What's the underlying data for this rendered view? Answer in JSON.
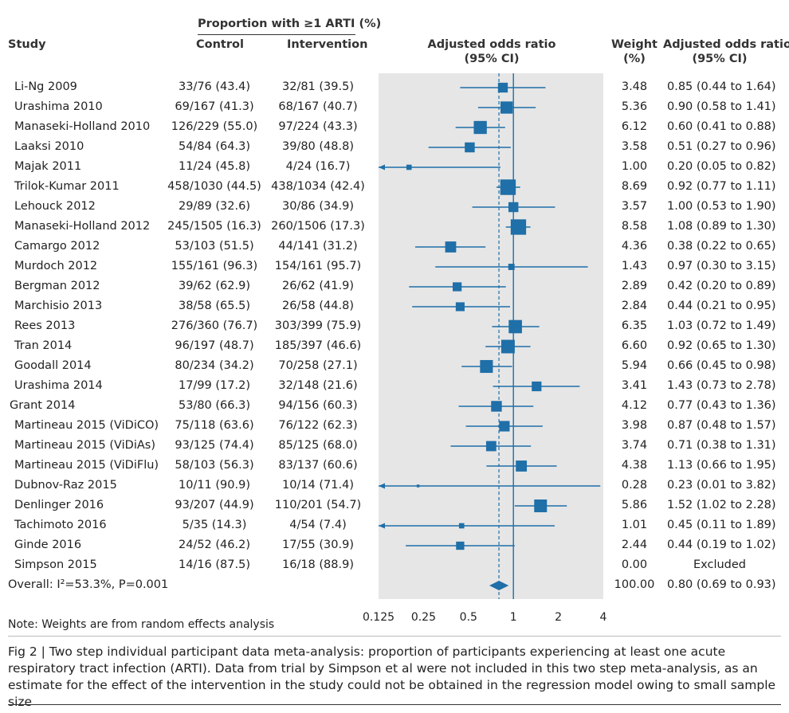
{
  "header": {
    "study": "Study",
    "proportion": "Proportion with ≥1 ARTI (%)",
    "control": "Control",
    "intervention": "Intervention",
    "aor_line1": "Adjusted odds ratio",
    "aor_line2": "(95% CI)",
    "weight_line1": "Weight",
    "weight_line2": "(%)",
    "aor2_line1": "Adjusted odds ratio",
    "aor2_line2": "(95% CI)"
  },
  "rows": [
    {
      "study": "Li-Ng 2009",
      "control": "33/76 (43.4)",
      "intervention": "32/81 (39.5)",
      "weight": "3.48",
      "ci_text": "0.85 (0.44 to 1.64)"
    },
    {
      "study": "Urashima 2010",
      "control": "69/167 (41.3)",
      "intervention": "68/167 (40.7)",
      "weight": "5.36",
      "ci_text": "0.90 (0.58 to 1.41)"
    },
    {
      "study": "Manaseki-Holland 2010",
      "control": "126/229 (55.0)",
      "intervention": "97/224 (43.3)",
      "weight": "6.12",
      "ci_text": "0.60 (0.41 to 0.88)"
    },
    {
      "study": "Laaksi 2010",
      "control": "54/84 (64.3)",
      "intervention": "39/80 (48.8)",
      "weight": "3.58",
      "ci_text": "0.51 (0.27 to 0.96)"
    },
    {
      "study": "Majak 2011",
      "control": "11/24 (45.8)",
      "intervention": "4/24 (16.7)",
      "weight": "1.00",
      "ci_text": "0.20 (0.05 to 0.82)"
    },
    {
      "study": "Trilok-Kumar 2011",
      "control": "458/1030 (44.5)",
      "intervention": "438/1034 (42.4)",
      "weight": "8.69",
      "ci_text": "0.92 (0.77 to 1.11)"
    },
    {
      "study": "Lehouck 2012",
      "control": "29/89 (32.6)",
      "intervention": "30/86 (34.9)",
      "weight": "3.57",
      "ci_text": "1.00 (0.53 to 1.90)"
    },
    {
      "study": "Manaseki-Holland 2012",
      "control": "245/1505 (16.3)",
      "intervention": "260/1506 (17.3)",
      "weight": "8.58",
      "ci_text": "1.08 (0.89 to 1.30)"
    },
    {
      "study": "Camargo 2012",
      "control": "53/103 (51.5)",
      "intervention": "44/141 (31.2)",
      "weight": "4.36",
      "ci_text": "0.38 (0.22 to 0.65)"
    },
    {
      "study": "Murdoch 2012",
      "control": "155/161 (96.3)",
      "intervention": "154/161 (95.7)",
      "weight": "1.43",
      "ci_text": "0.97 (0.30 to 3.15)"
    },
    {
      "study": "Bergman 2012",
      "control": "39/62 (62.9)",
      "intervention": "26/62 (41.9)",
      "weight": "2.89",
      "ci_text": "0.42 (0.20 to 0.89)"
    },
    {
      "study": "Marchisio 2013",
      "control": "38/58 (65.5)",
      "intervention": "26/58 (44.8)",
      "weight": "2.84",
      "ci_text": "0.44 (0.21 to 0.95)"
    },
    {
      "study": "Rees 2013",
      "control": "276/360 (76.7)",
      "intervention": "303/399 (75.9)",
      "weight": "6.35",
      "ci_text": "1.03 (0.72 to 1.49)"
    },
    {
      "study": "Tran 2014",
      "control": "96/197 (48.7)",
      "intervention": "185/397 (46.6)",
      "weight": "6.60",
      "ci_text": "0.92 (0.65 to 1.30)"
    },
    {
      "study": "Goodall 2014",
      "control": "80/234 (34.2)",
      "intervention": "70/258 (27.1)",
      "weight": "5.94",
      "ci_text": "0.66 (0.45 to 0.98)"
    },
    {
      "study": "Urashima 2014",
      "control": "17/99 (17.2)",
      "intervention": "32/148 (21.6)",
      "weight": "3.41",
      "ci_text": "1.43 (0.73 to 2.78)"
    },
    {
      "study": "Grant 2014",
      "control": "53/80 (66.3)",
      "intervention": "94/156 (60.3)",
      "weight": "4.12",
      "ci_text": "0.77 (0.43 to 1.36)"
    },
    {
      "study": "Martineau 2015 (ViDiCO)",
      "control": "75/118 (63.6)",
      "intervention": "76/122 (62.3)",
      "weight": "3.98",
      "ci_text": "0.87 (0.48 to 1.57)"
    },
    {
      "study": "Martineau 2015 (ViDiAs)",
      "control": "93/125 (74.4)",
      "intervention": "85/125 (68.0)",
      "weight": "3.74",
      "ci_text": "0.71 (0.38 to 1.31)"
    },
    {
      "study": "Martineau 2015 (ViDiFlu)",
      "control": "58/103 (56.3)",
      "intervention": "83/137 (60.6)",
      "weight": "4.38",
      "ci_text": "1.13 (0.66 to 1.95)"
    },
    {
      "study": "Dubnov-Raz 2015",
      "control": "10/11 (90.9)",
      "intervention": "10/14 (71.4)",
      "weight": "0.28",
      "ci_text": "0.23 (0.01 to 3.82)"
    },
    {
      "study": "Denlinger 2016",
      "control": "93/207 (44.9)",
      "intervention": "110/201 (54.7)",
      "weight": "5.86",
      "ci_text": "1.52 (1.02 to 2.28)"
    },
    {
      "study": "Tachimoto 2016",
      "control": "5/35 (14.3)",
      "intervention": "4/54 (7.4)",
      "weight": "1.01",
      "ci_text": "0.45 (0.11 to 1.89)"
    },
    {
      "study": "Ginde 2016",
      "control": "24/52 (46.2)",
      "intervention": "17/55 (30.9)",
      "weight": "2.44",
      "ci_text": "0.44 (0.19 to 1.02)"
    },
    {
      "study": "Simpson 2015",
      "control": "14/16 (87.5)",
      "intervention": "16/18 (88.9)",
      "weight": "0.00",
      "ci_text": "Excluded"
    }
  ],
  "overall": {
    "label": "Overall: I²=53.3%, P=0.001",
    "weight": "100.00",
    "ci_text": "0.80 (0.69 to 0.93)"
  },
  "note": "Note: Weights are from random effects analysis",
  "caption": "Fig 2 | Two step individual participant data meta-analysis: proportion of participants experiencing at least one acute respiratory tract infection (ARTI). Data from trial by Simpson et al were not included in this two step meta-analysis, as an estimate for the effect of the intervention in the study could not be obtained in the regression model owing to small sample size",
  "colors": {
    "marker": "#1f6fa8",
    "panel": "#e6e6e6",
    "text": "#222222"
  },
  "chart_data": {
    "type": "forest",
    "scale": "log2",
    "xlim": [
      0.125,
      4
    ],
    "xticks": [
      0.125,
      0.25,
      0.5,
      1,
      2,
      4
    ],
    "xtick_labels": [
      "0.125",
      "0.25",
      "0.5",
      "1",
      "2",
      "4"
    ],
    "null_line": 1,
    "pooled_line": 0.8,
    "points": [
      {
        "or": 0.85,
        "lo": 0.44,
        "hi": 1.64,
        "w": 3.48
      },
      {
        "or": 0.9,
        "lo": 0.58,
        "hi": 1.41,
        "w": 5.36
      },
      {
        "or": 0.6,
        "lo": 0.41,
        "hi": 0.88,
        "w": 6.12
      },
      {
        "or": 0.51,
        "lo": 0.27,
        "hi": 0.96,
        "w": 3.58
      },
      {
        "or": 0.2,
        "lo": 0.05,
        "hi": 0.82,
        "w": 1.0
      },
      {
        "or": 0.92,
        "lo": 0.77,
        "hi": 1.11,
        "w": 8.69
      },
      {
        "or": 1.0,
        "lo": 0.53,
        "hi": 1.9,
        "w": 3.57
      },
      {
        "or": 1.08,
        "lo": 0.89,
        "hi": 1.3,
        "w": 8.58
      },
      {
        "or": 0.38,
        "lo": 0.22,
        "hi": 0.65,
        "w": 4.36
      },
      {
        "or": 0.97,
        "lo": 0.3,
        "hi": 3.15,
        "w": 1.43
      },
      {
        "or": 0.42,
        "lo": 0.2,
        "hi": 0.89,
        "w": 2.89
      },
      {
        "or": 0.44,
        "lo": 0.21,
        "hi": 0.95,
        "w": 2.84
      },
      {
        "or": 1.03,
        "lo": 0.72,
        "hi": 1.49,
        "w": 6.35
      },
      {
        "or": 0.92,
        "lo": 0.65,
        "hi": 1.3,
        "w": 6.6
      },
      {
        "or": 0.66,
        "lo": 0.45,
        "hi": 0.98,
        "w": 5.94
      },
      {
        "or": 1.43,
        "lo": 0.73,
        "hi": 2.78,
        "w": 3.41
      },
      {
        "or": 0.77,
        "lo": 0.43,
        "hi": 1.36,
        "w": 4.12
      },
      {
        "or": 0.87,
        "lo": 0.48,
        "hi": 1.57,
        "w": 3.98
      },
      {
        "or": 0.71,
        "lo": 0.38,
        "hi": 1.31,
        "w": 3.74
      },
      {
        "or": 1.13,
        "lo": 0.66,
        "hi": 1.95,
        "w": 4.38
      },
      {
        "or": 0.23,
        "lo": 0.01,
        "hi": 3.82,
        "w": 0.28
      },
      {
        "or": 1.52,
        "lo": 1.02,
        "hi": 2.28,
        "w": 5.86
      },
      {
        "or": 0.45,
        "lo": 0.11,
        "hi": 1.89,
        "w": 1.01
      },
      {
        "or": 0.44,
        "lo": 0.19,
        "hi": 1.02,
        "w": 2.44
      },
      null
    ],
    "overall": {
      "or": 0.8,
      "lo": 0.69,
      "hi": 0.93
    }
  }
}
